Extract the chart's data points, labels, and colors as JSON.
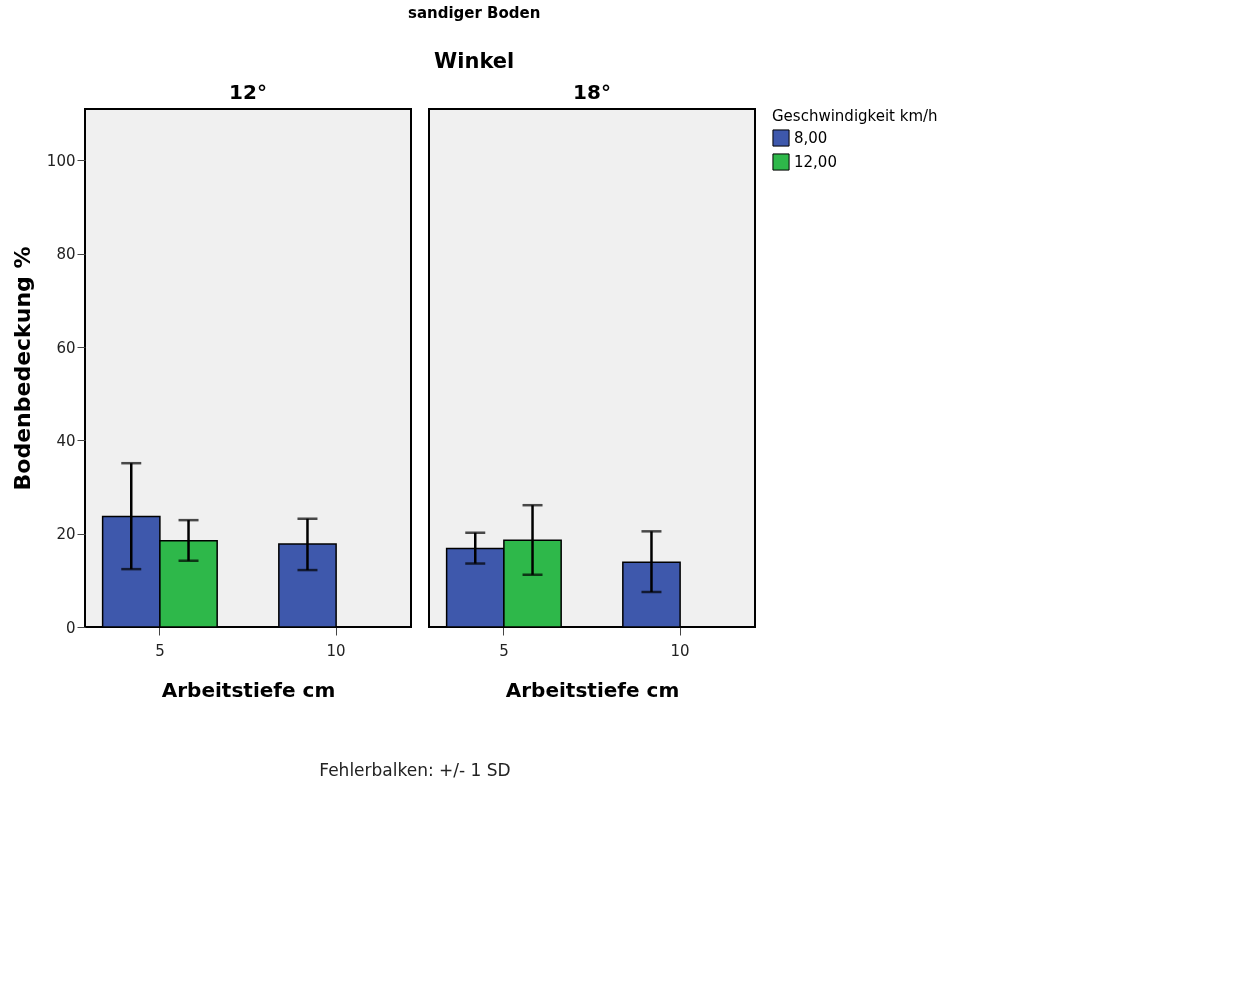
{
  "chart_data": [
    {
      "type": "bar",
      "title": "12°",
      "xlabel": "Arbeitstiefe cm",
      "ylabel": "Bodenbedeckung %",
      "legend_title": "Geschwindigkeit km/h",
      "legend": "top right",
      "annotations": [
        "sandiger Boden",
        "Winkel",
        "Fehlerbalken: +/- 1 SD"
      ],
      "categories": [
        "5",
        "10"
      ],
      "series": [
        {
          "name": "8,00",
          "color": "#3e58ac",
          "values": [
            23.7,
            17.8
          ],
          "errors": [
            [
              12.4,
              35.1
            ],
            [
              12.2,
              23.2
            ]
          ]
        },
        {
          "name": "12,00",
          "color": "#2eb84a",
          "values": [
            18.5,
            null
          ],
          "errors": [
            [
              14.2,
              22.9
            ],
            null
          ]
        }
      ],
      "ylim": [
        0,
        111
      ],
      "yticks": [
        0,
        20,
        40,
        60,
        80,
        100
      ],
      "grid": false
    },
    {
      "type": "bar",
      "title": "18°",
      "xlabel": "Arbeitstiefe cm",
      "tick_labels": "x",
      "categories": [
        "5",
        "10"
      ],
      "series": [
        {
          "name": "8,00",
          "color": "#3e58ac",
          "values": [
            16.8,
            13.9
          ],
          "errors": [
            [
              13.6,
              20.2
            ],
            [
              7.5,
              20.5
            ]
          ]
        },
        {
          "name": "12,00",
          "color": "#2eb84a",
          "values": [
            18.6,
            null
          ],
          "errors": [
            [
              11.2,
              26.1
            ],
            null
          ]
        }
      ],
      "ylim": [
        0,
        111
      ],
      "yticks": [
        0,
        20,
        40,
        60,
        80,
        100
      ],
      "grid": false
    }
  ]
}
